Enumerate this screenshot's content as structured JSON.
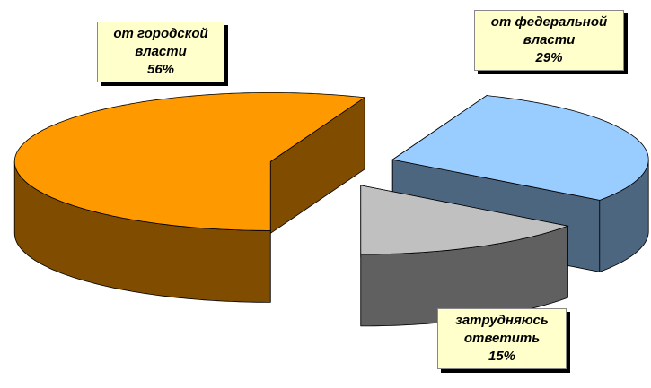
{
  "chart_data": {
    "type": "pie3d",
    "categories": [
      "от городской власти",
      "от федеральной власти",
      "затрудняюсь ответить"
    ],
    "values": [
      56,
      29,
      15
    ],
    "value_labels": [
      "56%",
      "29%",
      "15%"
    ],
    "colors": [
      "#ff9900",
      "#99ccff",
      "#c0c0c0"
    ]
  }
}
